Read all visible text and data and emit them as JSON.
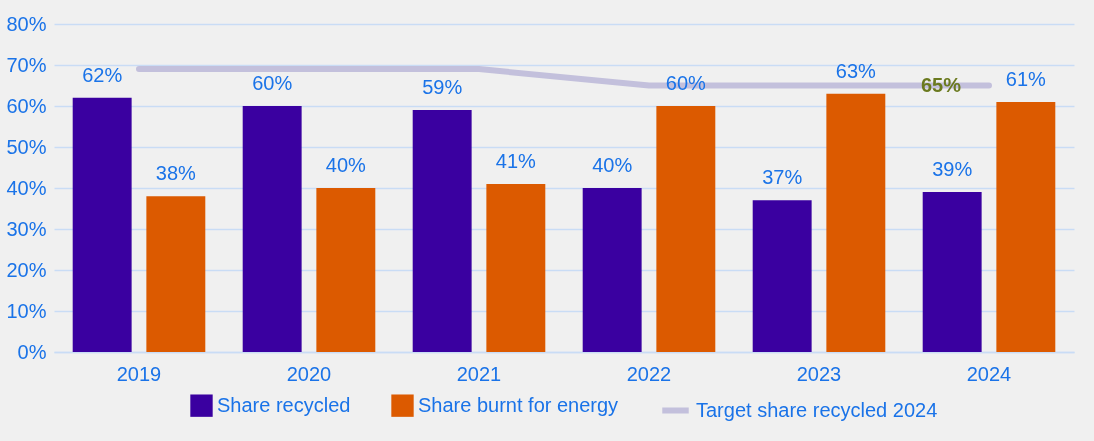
{
  "chart_data": {
    "type": "bar",
    "categories": [
      "2019",
      "2020",
      "2021",
      "2022",
      "2023",
      "2024"
    ],
    "series": [
      {
        "name": "Share recycled",
        "color": "#3a00a0",
        "values": [
          62,
          60,
          59,
          40,
          37,
          39
        ],
        "value_labels": [
          "62%",
          "60%",
          "59%",
          "40%",
          "37%",
          "39%"
        ]
      },
      {
        "name": "Share burnt for energy",
        "color": "#dc5a00",
        "values": [
          38,
          40,
          41,
          60,
          63,
          61
        ],
        "value_labels": [
          "38%",
          "40%",
          "41%",
          "60%",
          "63%",
          "61%"
        ]
      },
      {
        "name": "Target share recycled 2024",
        "type": "line",
        "color": "#c3c0dc",
        "values": [
          69,
          69,
          69,
          65,
          65,
          65
        ]
      }
    ],
    "ylim": [
      0,
      80
    ],
    "yticks": [
      {
        "value": 0,
        "label": "0%"
      },
      {
        "value": 10,
        "label": "10%"
      },
      {
        "value": 20,
        "label": "20%"
      },
      {
        "value": 30,
        "label": "30%"
      },
      {
        "value": 40,
        "label": "40%"
      },
      {
        "value": 50,
        "label": "50%"
      },
      {
        "value": 60,
        "label": "60%"
      },
      {
        "value": 70,
        "label": "70%"
      },
      {
        "value": 80,
        "label": "80%"
      }
    ],
    "grid": "y",
    "legend": "bottom",
    "annotations": [
      {
        "text": "65%",
        "x": "2024",
        "y": 65
      }
    ]
  }
}
